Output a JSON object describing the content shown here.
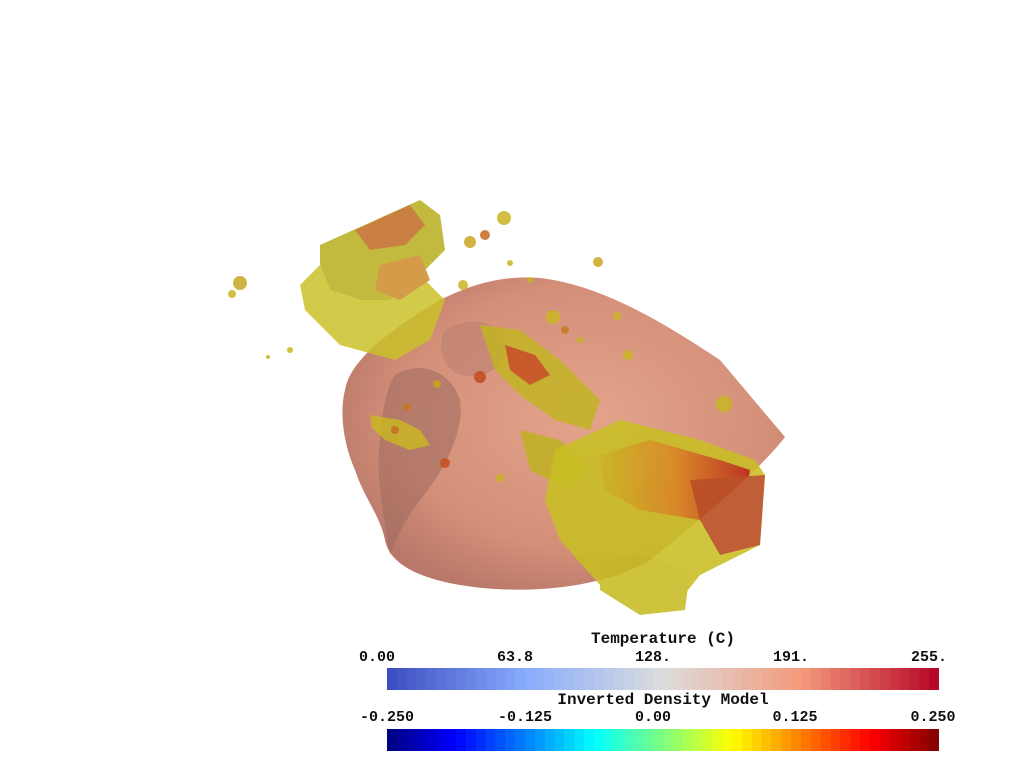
{
  "scalar_bars": [
    {
      "title": "Temperature (C)",
      "colormap": "coolwarm",
      "ticks": [
        "0.00",
        "63.8",
        "128.",
        "191.",
        "255."
      ],
      "stops": [
        "#3b4cc0",
        "#88abfd",
        "#dcdddd",
        "#f49a7b",
        "#b40426"
      ]
    },
    {
      "title": "Inverted Density Model",
      "colormap": "jet",
      "ticks": [
        "-0.250",
        "-0.125",
        "0.00",
        "0.125",
        "0.250"
      ],
      "stops": [
        "#00007f",
        "#0000ff",
        "#007fff",
        "#00ffff",
        "#7fff7f",
        "#ffff00",
        "#ff7f00",
        "#ff0000",
        "#7f0000"
      ]
    }
  ],
  "scene": {
    "surface_color": "#d8907a",
    "isosurface_color": "#c8c020",
    "background": "#ffffff"
  }
}
